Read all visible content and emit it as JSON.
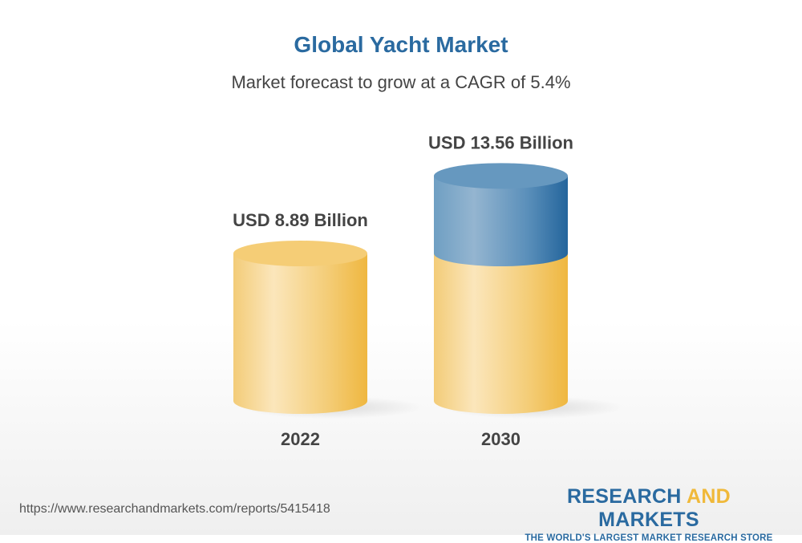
{
  "chart_data": {
    "type": "bar",
    "style": "3d-cylinder",
    "title": "Global Yacht Market",
    "subtitle": "Market forecast to grow at a CAGR of 5.4%",
    "categories": [
      "2022",
      "2030"
    ],
    "values": [
      8.89,
      13.56
    ],
    "data_labels": [
      "USD 8.89 Billion",
      "USD 13.56 Billion"
    ],
    "unit": "USD Billion",
    "colors": {
      "base": "#f2c65e",
      "growth": "#3f7fb0",
      "title": "#2a6aa0"
    }
  },
  "footer": {
    "url": "https://www.researchandmarkets.com/reports/5415418",
    "logo_part1": "RESEARCH ",
    "logo_part2": "AND",
    "logo_part3": " MARKETS",
    "tagline": "THE WORLD'S LARGEST MARKET RESEARCH STORE"
  }
}
